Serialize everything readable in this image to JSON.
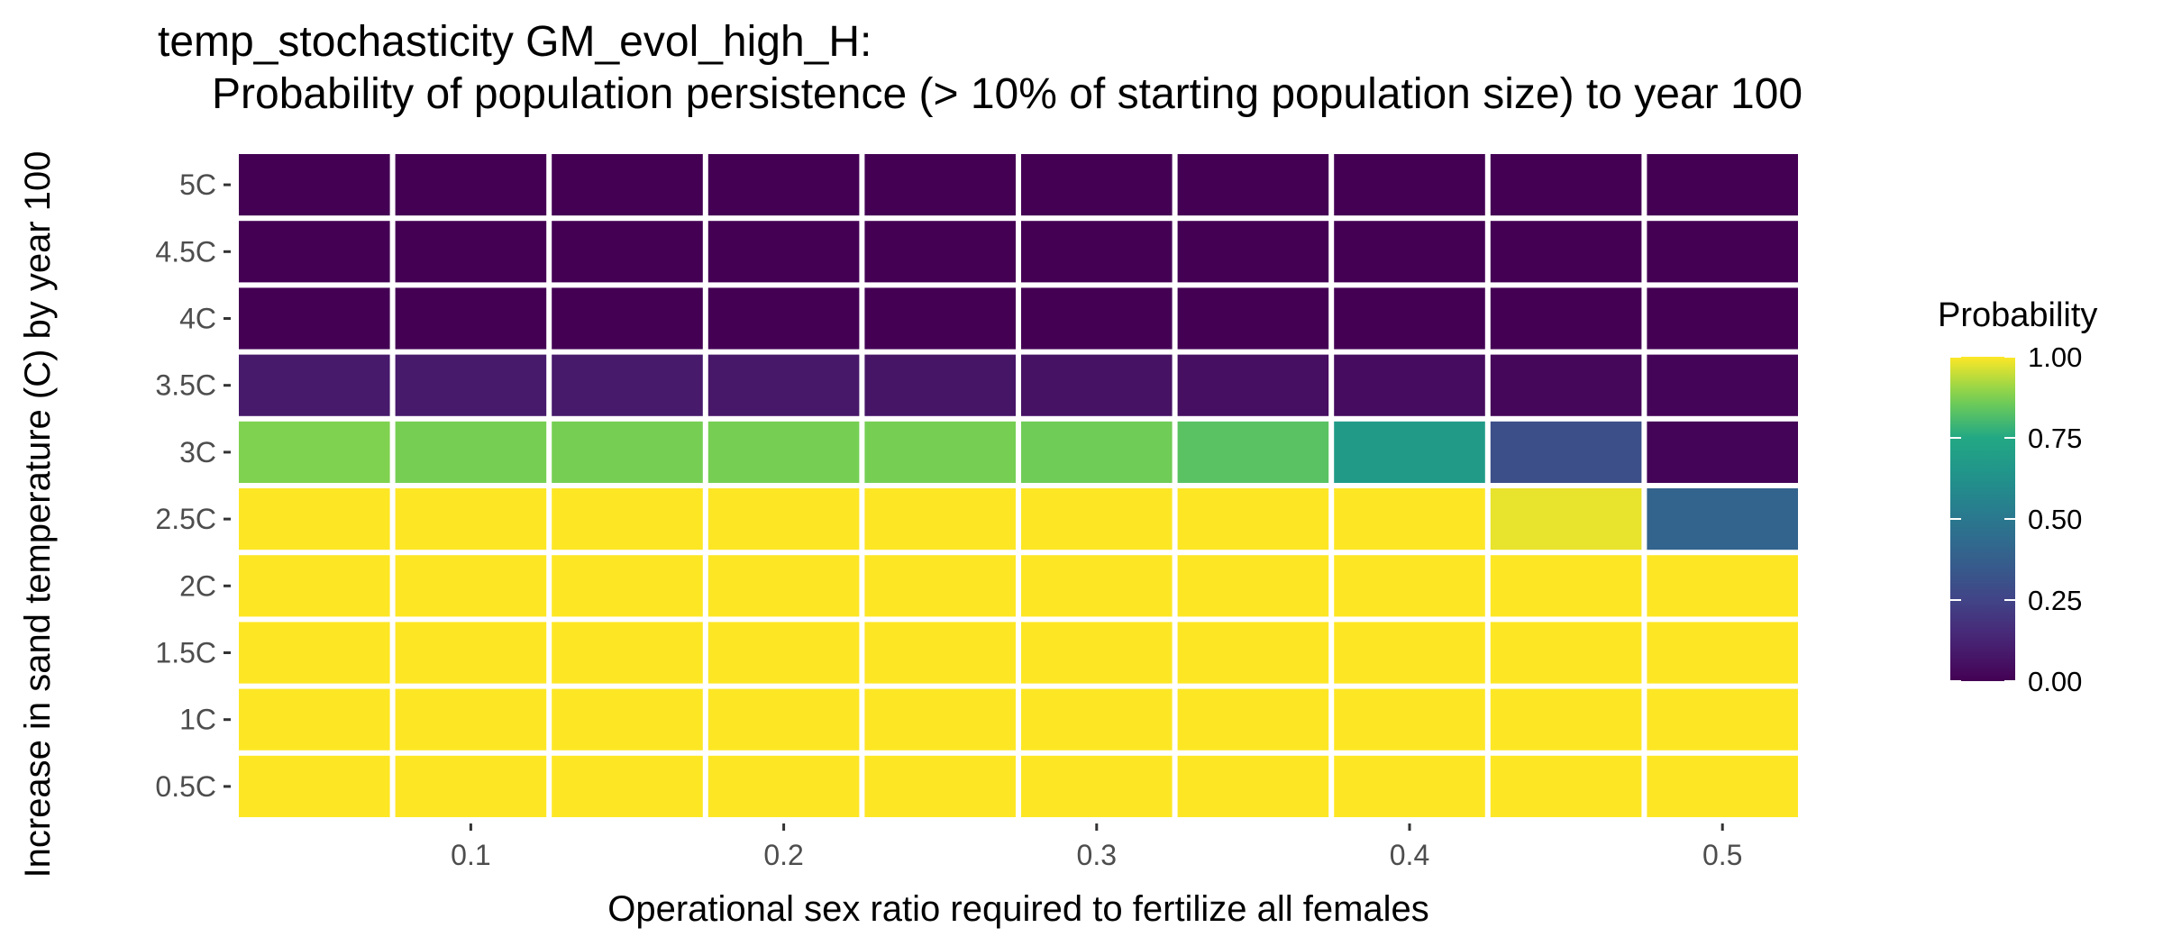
{
  "chart_data": {
    "type": "heatmap",
    "title_line1": "temp_stochasticity GM_evol_high_H:",
    "title_line2": "Probability of population persistence (> 10% of starting population size) to year 100",
    "xlabel": "Operational sex ratio required to fertilize all females",
    "ylabel": "Increase in sand temperature (C) by year 100",
    "x": [
      0.05,
      0.1,
      0.15,
      0.2,
      0.25,
      0.3,
      0.35,
      0.4,
      0.45,
      0.5
    ],
    "x_ticks": [
      0.1,
      0.2,
      0.3,
      0.4,
      0.5
    ],
    "x_tick_labels": [
      "0.1",
      "0.2",
      "0.3",
      "0.4",
      "0.5"
    ],
    "y_categories": [
      "0.5C",
      "1C",
      "1.5C",
      "2C",
      "2.5C",
      "3C",
      "3.5C",
      "4C",
      "4.5C",
      "5C"
    ],
    "values": [
      [
        1.0,
        1.0,
        1.0,
        1.0,
        1.0,
        1.0,
        1.0,
        1.0,
        1.0,
        1.0
      ],
      [
        1.0,
        1.0,
        1.0,
        1.0,
        1.0,
        1.0,
        1.0,
        1.0,
        1.0,
        1.0
      ],
      [
        1.0,
        1.0,
        1.0,
        1.0,
        1.0,
        1.0,
        1.0,
        1.0,
        1.0,
        1.0
      ],
      [
        1.0,
        1.0,
        1.0,
        1.0,
        1.0,
        1.0,
        1.0,
        1.0,
        1.0,
        1.0
      ],
      [
        1.0,
        1.0,
        1.0,
        1.0,
        1.0,
        1.0,
        1.0,
        1.0,
        0.98,
        0.4
      ],
      [
        0.88,
        0.87,
        0.87,
        0.87,
        0.87,
        0.86,
        0.83,
        0.68,
        0.3,
        0.01
      ],
      [
        0.09,
        0.09,
        0.09,
        0.08,
        0.07,
        0.06,
        0.05,
        0.04,
        0.02,
        0.01
      ],
      [
        0.0,
        0.0,
        0.0,
        0.0,
        0.0,
        0.0,
        0.0,
        0.0,
        0.0,
        0.0
      ],
      [
        0.0,
        0.0,
        0.0,
        0.0,
        0.0,
        0.0,
        0.0,
        0.0,
        0.0,
        0.0
      ],
      [
        0.0,
        0.0,
        0.0,
        0.0,
        0.0,
        0.0,
        0.0,
        0.0,
        0.0,
        0.0
      ]
    ],
    "legend": {
      "title": "Probability",
      "ticks": [
        1.0,
        0.75,
        0.5,
        0.25,
        0.0
      ],
      "tick_labels": [
        "1.00",
        "0.75",
        "0.50",
        "0.25",
        "0.00"
      ],
      "placement": "right"
    },
    "colorscale": "viridis",
    "colors": [
      "#440154",
      "#3b528b",
      "#21918c",
      "#5ec962",
      "#fde725"
    ],
    "grid": false
  }
}
